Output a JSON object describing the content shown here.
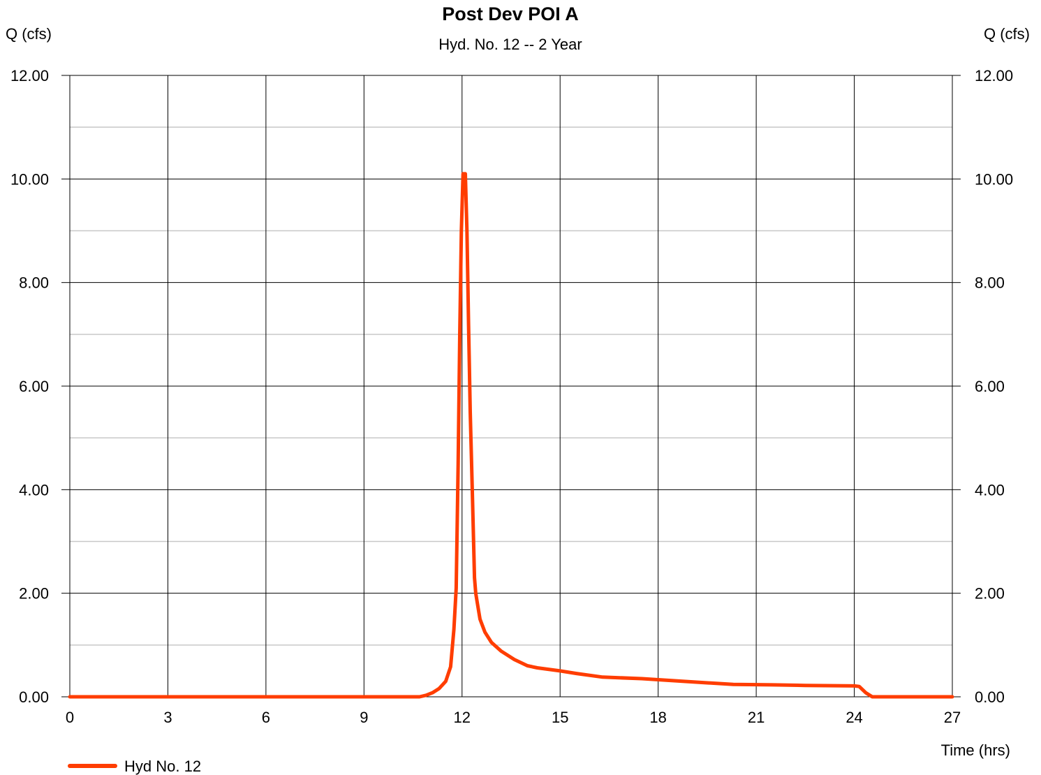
{
  "chart_data": {
    "type": "line",
    "title": "Post Dev POI A",
    "subtitle": "Hyd. No. 12 -- 2 Year",
    "ylabel_left": "Q (cfs)",
    "ylabel_right": "Q (cfs)",
    "xlabel": "Time (hrs)",
    "xlim": [
      0,
      27
    ],
    "ylim": [
      0,
      12
    ],
    "x_ticks": [
      "0",
      "3",
      "6",
      "9",
      "12",
      "15",
      "18",
      "21",
      "24",
      "27"
    ],
    "y_ticks": [
      "0.00",
      "2.00",
      "4.00",
      "6.00",
      "8.00",
      "10.00",
      "12.00"
    ],
    "grid": true,
    "legend_position": "bottom-left",
    "series": [
      {
        "name": "Hyd No. 12",
        "color": "#ff3d00",
        "x": [
          0,
          10.7,
          10.9,
          11.1,
          11.3,
          11.5,
          11.65,
          11.75,
          11.82,
          11.88,
          11.93,
          11.98,
          12.03,
          12.1,
          12.15,
          12.2,
          12.25,
          12.32,
          12.38,
          12.42,
          12.47,
          12.55,
          12.7,
          12.9,
          13.2,
          13.6,
          14.0,
          14.3,
          15.0,
          15.5,
          16.3,
          17.5,
          18.5,
          19.5,
          20.3,
          21.5,
          22.5,
          24.0,
          24.15,
          24.35,
          24.55,
          25.0,
          27.0
        ],
        "y": [
          0.0,
          0.0,
          0.03,
          0.08,
          0.16,
          0.3,
          0.58,
          1.3,
          2.1,
          4.5,
          7.0,
          9.0,
          10.1,
          10.1,
          9.0,
          7.2,
          5.5,
          3.8,
          2.3,
          2.0,
          1.8,
          1.5,
          1.25,
          1.05,
          0.88,
          0.72,
          0.6,
          0.56,
          0.5,
          0.45,
          0.38,
          0.35,
          0.31,
          0.27,
          0.24,
          0.23,
          0.22,
          0.21,
          0.2,
          0.08,
          0.0,
          0.0,
          0.0
        ]
      }
    ]
  }
}
